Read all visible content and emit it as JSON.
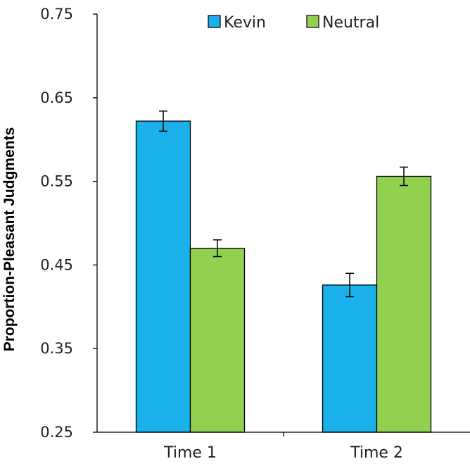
{
  "chart_data": {
    "type": "bar",
    "title": "",
    "xlabel": "",
    "ylabel": "Proportion-Pleasant Judgments",
    "categories": [
      "Time 1",
      "Time 2"
    ],
    "ylim": [
      0.25,
      0.75
    ],
    "yticks": [
      "0.25",
      "0.35",
      "0.45",
      "0.55",
      "0.65",
      "0.75"
    ],
    "grid": false,
    "legend_position": "top",
    "series": [
      {
        "name": "Kevin",
        "color": "#1ab0ea",
        "values": [
          0.622,
          0.426
        ],
        "errors": [
          0.012,
          0.014
        ]
      },
      {
        "name": "Neutral",
        "color": "#92d050",
        "values": [
          0.47,
          0.556
        ],
        "errors": [
          0.01,
          0.011
        ]
      }
    ]
  }
}
